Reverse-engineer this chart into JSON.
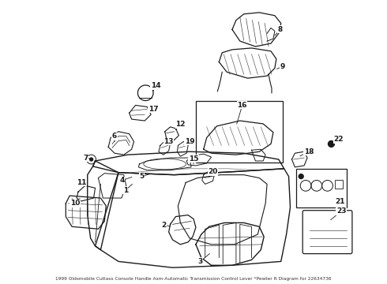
{
  "bg_color": "#ffffff",
  "line_color": "#1a1a1a",
  "title": "1999 Oldsmobile Cutlass Console Handle Asm-Automatic Transmission Control Lever *Pewter R Diagram for 22634736",
  "figsize": [
    4.9,
    3.6
  ],
  "dpi": 100
}
